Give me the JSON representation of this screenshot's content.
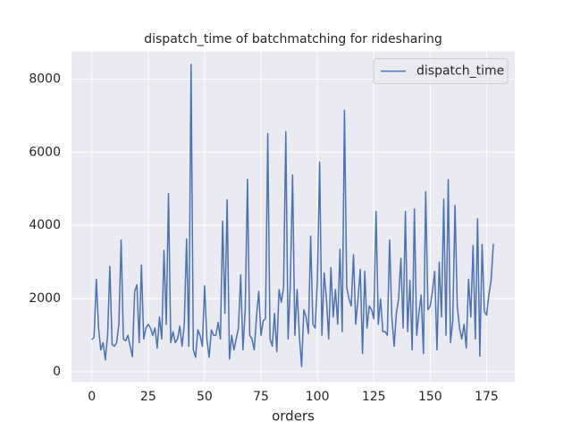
{
  "chart_data": {
    "type": "line",
    "title": "dispatch_time of batchmatching for ridesharing",
    "x_label": "orders",
    "x": [
      0,
      1,
      2,
      3,
      4,
      5,
      6,
      7,
      8,
      9,
      10,
      11,
      12,
      13,
      14,
      15,
      16,
      17,
      18,
      19,
      20,
      21,
      22,
      23,
      24,
      25,
      26,
      27,
      28,
      29,
      30,
      31,
      32,
      33,
      34,
      35,
      36,
      37,
      38,
      39,
      40,
      41,
      42,
      43,
      44,
      45,
      46,
      47,
      48,
      49,
      50,
      51,
      52,
      53,
      54,
      55,
      56,
      57,
      58,
      59,
      60,
      61,
      62,
      63,
      64,
      65,
      66,
      67,
      68,
      69,
      70,
      71,
      72,
      73,
      74,
      75,
      76,
      77,
      78,
      79,
      80,
      81,
      82,
      83,
      84,
      85,
      86,
      87,
      88,
      89,
      90,
      91,
      92,
      93,
      94,
      95,
      96,
      97,
      98,
      99,
      100,
      101,
      102,
      103,
      104,
      105,
      106,
      107,
      108,
      109,
      110,
      111,
      112,
      113,
      114,
      115,
      116,
      117,
      118,
      119,
      120,
      121,
      122,
      123,
      124,
      125,
      126,
      127,
      128,
      129,
      130,
      131,
      132,
      133,
      134,
      135,
      136,
      137,
      138,
      139,
      140,
      141,
      142,
      143,
      144,
      145,
      146,
      147,
      148,
      149,
      150,
      151,
      152,
      153,
      154,
      155,
      156,
      157,
      158,
      159,
      160,
      161,
      162,
      163,
      164,
      165,
      166,
      167,
      168,
      169,
      170,
      171,
      172,
      173,
      174,
      175,
      176,
      177,
      178
    ],
    "series": [
      {
        "name": "dispatch_time",
        "color": "#4c72b0",
        "values": [
          880,
          950,
          2530,
          1200,
          600,
          800,
          330,
          1000,
          2880,
          750,
          700,
          800,
          1300,
          3600,
          900,
          850,
          1000,
          700,
          420,
          2200,
          2380,
          800,
          2920,
          900,
          1200,
          1300,
          1200,
          1000,
          1200,
          650,
          1500,
          900,
          3320,
          1300,
          4870,
          800,
          1100,
          800,
          900,
          1250,
          700,
          1300,
          3630,
          700,
          8400,
          600,
          400,
          1150,
          1000,
          700,
          2350,
          900,
          400,
          1150,
          1000,
          1000,
          1350,
          900,
          4120,
          1600,
          4700,
          350,
          1000,
          600,
          900,
          1200,
          2650,
          600,
          1700,
          5260,
          1000,
          900,
          600,
          1500,
          2200,
          1000,
          1400,
          1450,
          6510,
          900,
          700,
          1600,
          550,
          2250,
          1900,
          2300,
          6560,
          900,
          2400,
          5380,
          1000,
          2250,
          1000,
          150,
          1700,
          1500,
          1050,
          3710,
          1300,
          1200,
          2500,
          5730,
          1000,
          2700,
          2000,
          900,
          2850,
          1500,
          2250,
          1300,
          3350,
          1100,
          7150,
          2300,
          2000,
          1800,
          3200,
          1300,
          2000,
          2800,
          500,
          2750,
          1200,
          1800,
          1700,
          1450,
          4380,
          1300,
          2000,
          1100,
          1100,
          1000,
          3600,
          1500,
          700,
          1600,
          2000,
          3100,
          1200,
          4380,
          1100,
          2500,
          600,
          4450,
          1000,
          1600,
          2100,
          500,
          4920,
          1700,
          1800,
          2200,
          2750,
          600,
          3000,
          1500,
          4720,
          1000,
          5250,
          800,
          1400,
          4550,
          1800,
          1200,
          900,
          1300,
          650,
          2530,
          1500,
          3450,
          900,
          4180,
          430,
          3480,
          1650,
          1550,
          2100,
          2500,
          3500
        ]
      }
    ],
    "xlim": [
      -9,
      187.5
    ],
    "ylim": [
      -270,
      8750
    ],
    "xticks": [
      0,
      25,
      50,
      75,
      100,
      125,
      150,
      175
    ],
    "yticks": [
      0,
      2000,
      4000,
      6000,
      8000
    ],
    "grid": true,
    "legend": "upper right"
  }
}
